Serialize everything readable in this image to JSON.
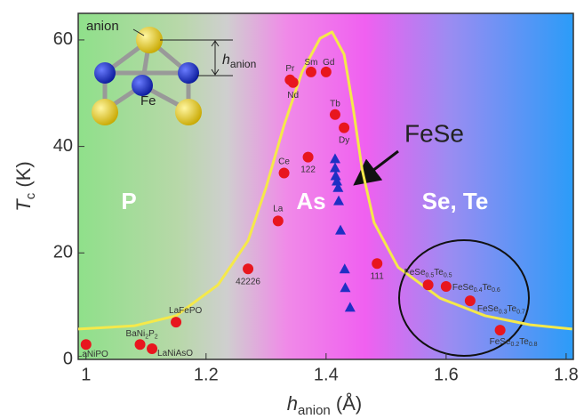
{
  "chart_data": {
    "type": "scatter",
    "x_label": [
      "h",
      "anion",
      " (Å)"
    ],
    "y_label": [
      "T",
      "c",
      " (K)"
    ],
    "xlim": [
      0.987,
      1.812
    ],
    "ylim": [
      0,
      65
    ],
    "xticks": [
      1,
      1.2,
      1.4,
      1.6,
      1.8
    ],
    "yticks": [
      0,
      20,
      40,
      60
    ],
    "series": [
      {
        "marker": "circle",
        "color": "#e8161e",
        "x": [
          1.0,
          1.09,
          1.11,
          1.15,
          1.27,
          1.32,
          1.33,
          1.37,
          1.34,
          1.345,
          1.375,
          1.4,
          1.415,
          1.43,
          1.485,
          1.57,
          1.6,
          1.64,
          1.69
        ],
        "values": [
          2.8,
          2.8,
          2,
          7,
          17,
          26,
          35,
          38,
          52.5,
          52,
          54,
          54,
          46,
          43.5,
          18,
          14,
          13.7,
          11,
          5.5
        ],
        "labels": [
          [
            "LaNiPO"
          ],
          [
            "BaNi",
            "2",
            "P",
            "2"
          ],
          [
            "LaNiAsO"
          ],
          [
            "LaFePO"
          ],
          [
            "42226"
          ],
          [
            "La"
          ],
          [
            "Ce"
          ],
          [
            "122"
          ],
          [
            "Pr"
          ],
          [
            "Nd"
          ],
          [
            "Sm"
          ],
          [
            "Gd"
          ],
          [
            "Tb"
          ],
          [
            "Dy"
          ],
          [
            "111"
          ],
          [
            "FeSe",
            "0.5",
            "Te",
            "0.5"
          ],
          [
            "FeSe",
            "0.4",
            "Te",
            "0.6"
          ],
          [
            "FeSe",
            "0.3",
            "Te",
            "0.7"
          ],
          [
            "FeSe",
            "0.2",
            "Te",
            "0.8"
          ]
        ]
      },
      {
        "marker": "triangle",
        "color": "#1f2fc4",
        "x": [
          1.415,
          1.415,
          1.416,
          1.418,
          1.42,
          1.421,
          1.424,
          1.431,
          1.432,
          1.44
        ],
        "values": [
          37.7,
          36,
          34.5,
          33.5,
          32.3,
          29.8,
          24.3,
          17,
          13.5,
          9.8
        ]
      },
      {
        "marker": "line",
        "color": "#f5e94a",
        "x": [
          0.987,
          1.08,
          1.15,
          1.22,
          1.27,
          1.3,
          1.33,
          1.36,
          1.39,
          1.41,
          1.43,
          1.445,
          1.46,
          1.48,
          1.52,
          1.59,
          1.665,
          1.74,
          1.81
        ],
        "values": [
          5.7,
          6.3,
          8.2,
          14,
          22.3,
          32.3,
          44,
          54,
          60.3,
          61.5,
          57.3,
          47.3,
          35.7,
          25.7,
          17.3,
          11.5,
          8.2,
          6.5,
          5.7
        ]
      }
    ],
    "annotations": [
      "P",
      "As",
      "Se, Te",
      "FeSe"
    ],
    "inset": {
      "anion": "anion",
      "fe": "Fe",
      "h": [
        "h",
        "anion"
      ]
    }
  }
}
